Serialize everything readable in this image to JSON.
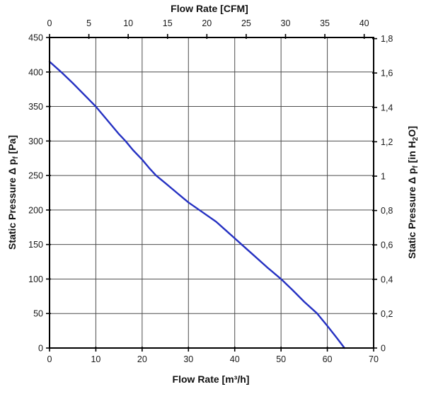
{
  "chart_data": {
    "type": "line",
    "grid": true,
    "legend": false,
    "top_axis": {
      "title": "Flow Rate [CFM]",
      "ticks": [
        0,
        5,
        10,
        15,
        20,
        25,
        30,
        35,
        40
      ],
      "m3h_per_cfm": 1.699
    },
    "bottom_axis": {
      "title": "Flow Rate [m³/h]",
      "min": 0,
      "max": 70,
      "ticks": [
        0,
        10,
        20,
        30,
        40,
        50,
        60,
        70
      ],
      "grid_step": 10
    },
    "left_axis": {
      "title_prefix": "Static Pressure Δ p",
      "title_sub": "f",
      "title_suffix": " [Pa]",
      "min": 0,
      "max": 450,
      "ticks": [
        450,
        400,
        350,
        300,
        250,
        200,
        150,
        100,
        50,
        0
      ],
      "grid_step": 50
    },
    "right_axis": {
      "title_prefix": "Static Pressure Δ p",
      "title_sub": "f",
      "title_mid": " [in H",
      "title_sub2": "2",
      "title_suffix": "O]",
      "tick_labels": [
        "1,8",
        "1,6",
        "1,4",
        "1,2",
        "1",
        "0,8",
        "0,6",
        "0,4",
        "0,2",
        "0"
      ],
      "tick_values": [
        1.8,
        1.6,
        1.4,
        1.2,
        1.0,
        0.8,
        0.6,
        0.4,
        0.2,
        0
      ],
      "pa_per_in_h2o": 249.089
    },
    "series": [
      {
        "name": "static-pressure-curve",
        "color": "#2531c2",
        "points_m3h_pa": [
          [
            0,
            415
          ],
          [
            2.5,
            400
          ],
          [
            5,
            384
          ],
          [
            7.5,
            367
          ],
          [
            10,
            350
          ],
          [
            12.5,
            330
          ],
          [
            15,
            310
          ],
          [
            16.4,
            300
          ],
          [
            18,
            287
          ],
          [
            20,
            273
          ],
          [
            21.5,
            261
          ],
          [
            23,
            250
          ],
          [
            25,
            239
          ],
          [
            27.5,
            225
          ],
          [
            30,
            211
          ],
          [
            33,
            197
          ],
          [
            36,
            183
          ],
          [
            38,
            171
          ],
          [
            40,
            159
          ],
          [
            41.5,
            150
          ],
          [
            44,
            135
          ],
          [
            47,
            117
          ],
          [
            50,
            100
          ],
          [
            52.5,
            84
          ],
          [
            55,
            67
          ],
          [
            57.8,
            50
          ],
          [
            60,
            32
          ],
          [
            62,
            15
          ],
          [
            63.7,
            0
          ]
        ]
      }
    ],
    "colors": {
      "grid": "#4d4d4d",
      "axis": "#000000",
      "text": "#111111",
      "background": "#ffffff"
    }
  }
}
